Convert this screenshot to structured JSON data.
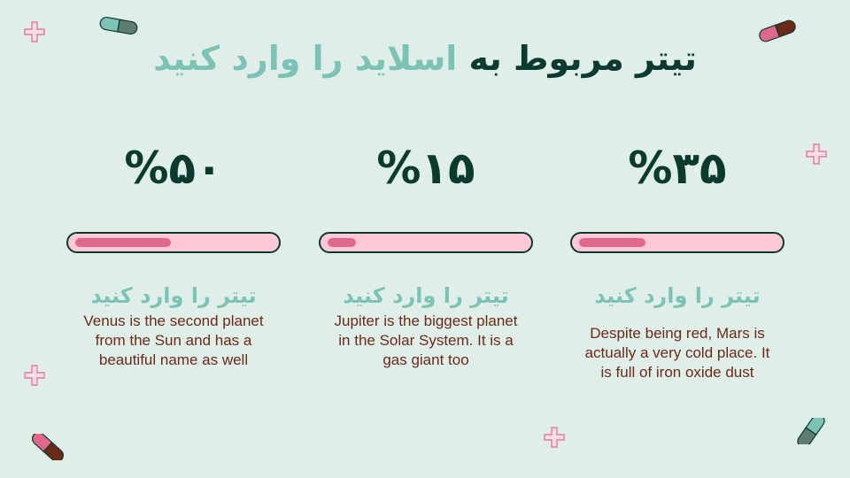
{
  "title": {
    "dark": "تیتر مربوط به",
    "accent": "اسلاید را وارد کنید"
  },
  "columns": [
    {
      "percent_label": "%۵۰",
      "progress": 50,
      "title": "تیتر را وارد کنید",
      "description": "Venus is the second planet from the Sun and has a beautiful name as well"
    },
    {
      "percent_label": "%۱۵",
      "progress": 15,
      "title": "تیتر را وارد کنید",
      "description": "Jupiter is the biggest planet in the Solar System.  It is a gas giant too"
    },
    {
      "percent_label": "%۳۵",
      "progress": 35,
      "title": "تیتر را وارد کنید",
      "description": "Despite being red, Mars is actually a very cold place. It is full of iron oxide dust"
    }
  ],
  "colors": {
    "background": "#e0eeea",
    "dark": "#0b3a2e",
    "accent": "#7cc3b5",
    "track": "#ffc8d6",
    "fill": "#e0688a",
    "text": "#6b2a17"
  },
  "decorations": [
    "plus-icon",
    "pill-icon"
  ]
}
